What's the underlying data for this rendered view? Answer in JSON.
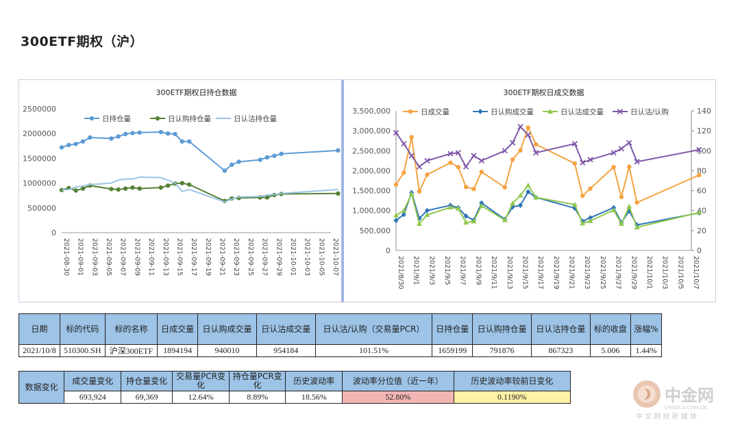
{
  "page": {
    "title": "300ETF期权（沪）"
  },
  "chart_data": [
    {
      "type": "line",
      "title": "300ETF期权日持仓数据",
      "legend_position": "top",
      "x": [
        "2021-08-30",
        "2021-08-31",
        "2021-09-01",
        "2021-09-02",
        "2021-09-03",
        "2021-09-06",
        "2021-09-07",
        "2021-09-08",
        "2021-09-09",
        "2021-09-10",
        "2021-09-13",
        "2021-09-14",
        "2021-09-15",
        "2021-09-16",
        "2021-09-17",
        "2021-09-22",
        "2021-09-23",
        "2021-09-24",
        "2021-09-27",
        "2021-09-28",
        "2021-09-29",
        "2021-09-30",
        "2021-10-08"
      ],
      "x_ticks": [
        "2021-08-30",
        "2021-09-01",
        "2021-09-03",
        "2021-09-05",
        "2021-09-07",
        "2021-09-09",
        "2021-09-11",
        "2021-09-13",
        "2021-09-15",
        "2021-09-17",
        "2021-09-19",
        "2021-09-21",
        "2021-09-23",
        "2021-09-25",
        "2021-09-27",
        "2021-09-29",
        "2021-10-01",
        "2021-10-03",
        "2021-10-05",
        "2021-10-07"
      ],
      "ylim": [
        0,
        2500000
      ],
      "y_ticks": [
        "0",
        "500000",
        "1000000",
        "1500000",
        "2000000",
        "2500000"
      ],
      "series": [
        {
          "name": "日持仓量",
          "color": "#5b9bd5",
          "marker": "circle",
          "values": [
            1720000,
            1770000,
            1790000,
            1840000,
            1920000,
            1900000,
            1940000,
            1990000,
            2010000,
            2020000,
            2030000,
            2000000,
            1990000,
            1840000,
            1840000,
            1250000,
            1370000,
            1430000,
            1470000,
            1520000,
            1550000,
            1590000,
            1660000
          ]
        },
        {
          "name": "日认购持仓量",
          "color": "#548235",
          "marker": "circle",
          "values": [
            860000,
            900000,
            850000,
            890000,
            950000,
            880000,
            870000,
            890000,
            910000,
            890000,
            910000,
            950000,
            990000,
            1000000,
            970000,
            640000,
            690000,
            700000,
            710000,
            710000,
            760000,
            780000,
            790000
          ]
        },
        {
          "name": "日认沽持仓量",
          "color": "#9dc3e6",
          "marker": "none",
          "values": [
            860000,
            870000,
            920000,
            940000,
            970000,
            1000000,
            1060000,
            1080000,
            1080000,
            1120000,
            1110000,
            1060000,
            1000000,
            830000,
            870000,
            620000,
            680000,
            720000,
            730000,
            760000,
            770000,
            790000,
            870000
          ]
        }
      ]
    },
    {
      "type": "line",
      "title": "300ETF期权日成交数据",
      "legend_position": "top",
      "x": [
        "2021-08-30",
        "2021-08-31",
        "2021-09-01",
        "2021-09-02",
        "2021-09-03",
        "2021-09-06",
        "2021-09-07",
        "2021-09-08",
        "2021-09-09",
        "2021-09-10",
        "2021-09-13",
        "2021-09-14",
        "2021-09-15",
        "2021-09-16",
        "2021-09-17",
        "2021-09-22",
        "2021-09-23",
        "2021-09-24",
        "2021-09-27",
        "2021-09-28",
        "2021-09-29",
        "2021-09-30",
        "2021-10-08"
      ],
      "x_ticks": [
        "2021/8/30",
        "2021/9/1",
        "2021/9/3",
        "2021/9/5",
        "2021/9/7",
        "2021/9/9",
        "2021/9/11",
        "2021/9/13",
        "2021/9/15",
        "2021/9/17",
        "2021/9/19",
        "2021/9/21",
        "2021/9/23",
        "2021/9/25",
        "2021/9/27",
        "2021/9/29",
        "2021/10/1",
        "2021/10/3",
        "2021/10/5",
        "2021/10/7"
      ],
      "ylim": [
        0,
        3500000
      ],
      "y_ticks": [
        "0",
        "500,000",
        "1,000,000",
        "1,500,000",
        "2,000,000",
        "2,500,000",
        "3,000,000",
        "3,500,000"
      ],
      "y2lim": [
        0,
        140
      ],
      "y2_ticks": [
        "0",
        "20",
        "40",
        "60",
        "80",
        "100",
        "120",
        "140"
      ],
      "series": [
        {
          "name": "日成交量",
          "color": "#f4a340",
          "marker": "circle",
          "axis": "left",
          "values": [
            1650000,
            1950000,
            2840000,
            1480000,
            1900000,
            2200000,
            2090000,
            1590000,
            1540000,
            1970000,
            1580000,
            2280000,
            2510000,
            3080000,
            2660000,
            2180000,
            1370000,
            1550000,
            2090000,
            1340000,
            2100000,
            1200000,
            1890000
          ]
        },
        {
          "name": "日认购成交量",
          "color": "#2e75b6",
          "marker": "diamond",
          "axis": "left",
          "values": [
            750000,
            900000,
            1450000,
            800000,
            1000000,
            1130000,
            1070000,
            860000,
            760000,
            1190000,
            780000,
            1090000,
            1130000,
            1470000,
            1330000,
            1060000,
            730000,
            820000,
            1070000,
            700000,
            990000,
            640000,
            940000
          ]
        },
        {
          "name": "日认沽成交量",
          "color": "#8fc750",
          "marker": "triangle",
          "axis": "left",
          "values": [
            880000,
            1000000,
            1420000,
            670000,
            890000,
            1080000,
            1050000,
            700000,
            730000,
            1120000,
            760000,
            1180000,
            1380000,
            1630000,
            1330000,
            1150000,
            680000,
            740000,
            1010000,
            670000,
            1100000,
            580000,
            950000
          ]
        },
        {
          "name": "日认沽/认购",
          "color": "#7e57a8",
          "marker": "x",
          "axis": "right",
          "values": [
            118,
            107,
            95,
            84,
            90,
            97,
            98,
            84,
            95,
            90,
            100,
            108,
            124,
            116,
            98,
            107,
            88,
            91,
            98,
            102,
            108,
            89,
            101
          ]
        }
      ]
    }
  ],
  "table_main": {
    "headers": [
      "日期",
      "标的代码",
      "标的名称",
      "日成交量",
      "日认购成交量",
      "日认沽成交量",
      "日认沽/认购（交易量PCR）",
      "日持仓量",
      "日认购持仓量",
      "日认沽持仓量",
      "标的收盘",
      "涨幅%"
    ],
    "values": [
      "2021/10/8",
      "510300.SH",
      "沪深300ETF",
      "1894194",
      "940010",
      "954184",
      "101.51%",
      "1659199",
      "791876",
      "867323",
      "5.006",
      "1.44%"
    ]
  },
  "table_change": {
    "row_label": "数据变化",
    "headers": [
      "成交量变化",
      "持仓量变化",
      "交易量PCR变化",
      "持仓量PCR变化",
      "历史波动率",
      "波动率分位值（近一年）",
      "历史波动率较前日变化"
    ],
    "values": [
      "693,924",
      "69,369",
      "12.64%",
      "8.89%",
      "18.56%",
      "52.80%",
      "0.1190%"
    ]
  },
  "logo": {
    "text": "中金网",
    "sub": "中 文 财 经 新 媒 体",
    "url_text": "CNGOLD.COM.CN"
  }
}
